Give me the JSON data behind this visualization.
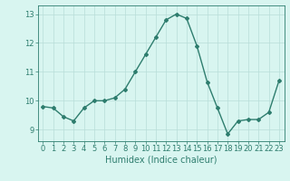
{
  "x": [
    0,
    1,
    2,
    3,
    4,
    5,
    6,
    7,
    8,
    9,
    10,
    11,
    12,
    13,
    14,
    15,
    16,
    17,
    18,
    19,
    20,
    21,
    22,
    23
  ],
  "y": [
    9.8,
    9.75,
    9.45,
    9.3,
    9.75,
    10.0,
    10.0,
    10.1,
    10.4,
    11.0,
    11.6,
    12.2,
    12.8,
    13.0,
    12.85,
    11.9,
    10.65,
    9.75,
    8.85,
    9.3,
    9.35,
    9.35,
    9.6,
    10.7
  ],
  "line_color": "#2e7d6e",
  "marker": "D",
  "marker_size": 2.0,
  "bg_color": "#d8f5f0",
  "grid_color": "#b8ddd8",
  "xlabel": "Humidex (Indice chaleur)",
  "xlim": [
    -0.5,
    23.5
  ],
  "ylim": [
    8.6,
    13.3
  ],
  "yticks": [
    9,
    10,
    11,
    12,
    13
  ],
  "xticks": [
    0,
    1,
    2,
    3,
    4,
    5,
    6,
    7,
    8,
    9,
    10,
    11,
    12,
    13,
    14,
    15,
    16,
    17,
    18,
    19,
    20,
    21,
    22,
    23
  ],
  "tick_color": "#2e7d6e",
  "label_color": "#2e7d6e",
  "font_size_xlabel": 7,
  "font_size_ticks": 6,
  "linewidth": 1.0
}
